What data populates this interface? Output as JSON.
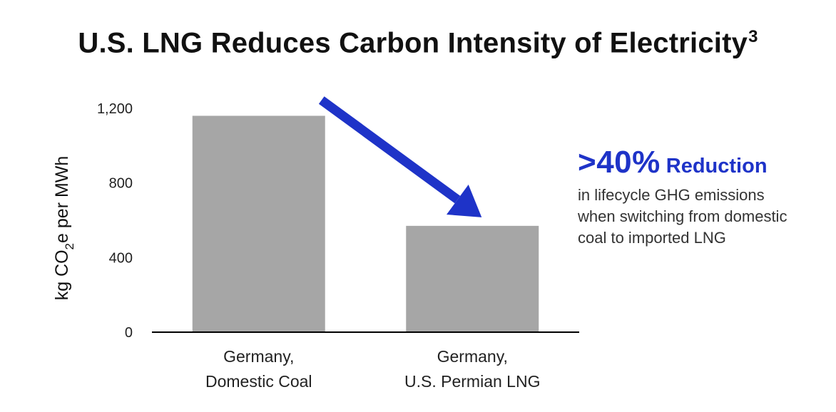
{
  "chart_data": {
    "type": "bar",
    "title": "U.S. LNG Reduces Carbon Intensity of Electricity",
    "title_superscript": "3",
    "categories": [
      [
        "Germany,",
        "Domestic Coal"
      ],
      [
        "Germany,",
        "U.S. Permian LNG"
      ]
    ],
    "series": [
      {
        "values": [
          1160,
          570
        ]
      }
    ],
    "ylabel": {
      "prefix": "kg CO",
      "subscript": "2",
      "suffix": "e per MWh"
    },
    "yticks": [
      0,
      400,
      800,
      1200
    ],
    "ytick_labels": [
      "0",
      "400",
      "800",
      "1,200"
    ],
    "ylim": [
      0,
      1200
    ],
    "grid": false,
    "bar_color": "#a6a6a6",
    "arrow_color": "#1e33c8",
    "annotation": {
      "value": ">40%",
      "word": "Reduction",
      "text": "in lifecycle GHG emissions\nwhen switching from domestic\ncoal to imported LNG"
    }
  }
}
